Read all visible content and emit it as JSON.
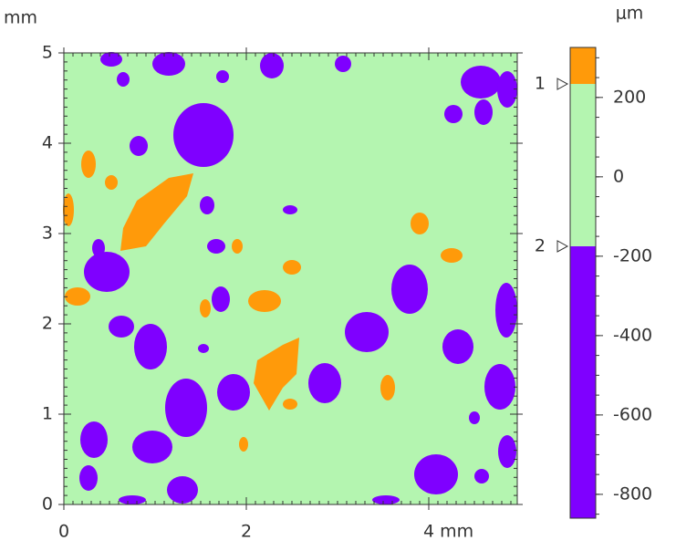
{
  "chart_data": {
    "type": "map",
    "y_label": "mm",
    "xlim": [
      0,
      4.97
    ],
    "xticks": [
      0,
      2,
      {
        "value": 4,
        "label": "4 mm"
      }
    ],
    "ylim": [
      0,
      5
    ],
    "yticks": [
      0,
      1,
      2,
      3,
      4,
      5
    ],
    "colorbar": {
      "label": "μm",
      "lim": [
        -860,
        326
      ],
      "ticks": [
        -800,
        -600,
        -400,
        -200,
        0,
        200
      ],
      "bands": [
        {
          "from": -860,
          "to": -175,
          "color": "#7f00ff"
        },
        {
          "from": -175,
          "to": 234,
          "color": "#b4f5b0"
        },
        {
          "from": 234,
          "to": 326,
          "color": "#ff9a0a"
        }
      ],
      "markers": [
        {
          "label": "1",
          "value": 234
        },
        {
          "label": "2",
          "value": -175
        }
      ]
    }
  }
}
